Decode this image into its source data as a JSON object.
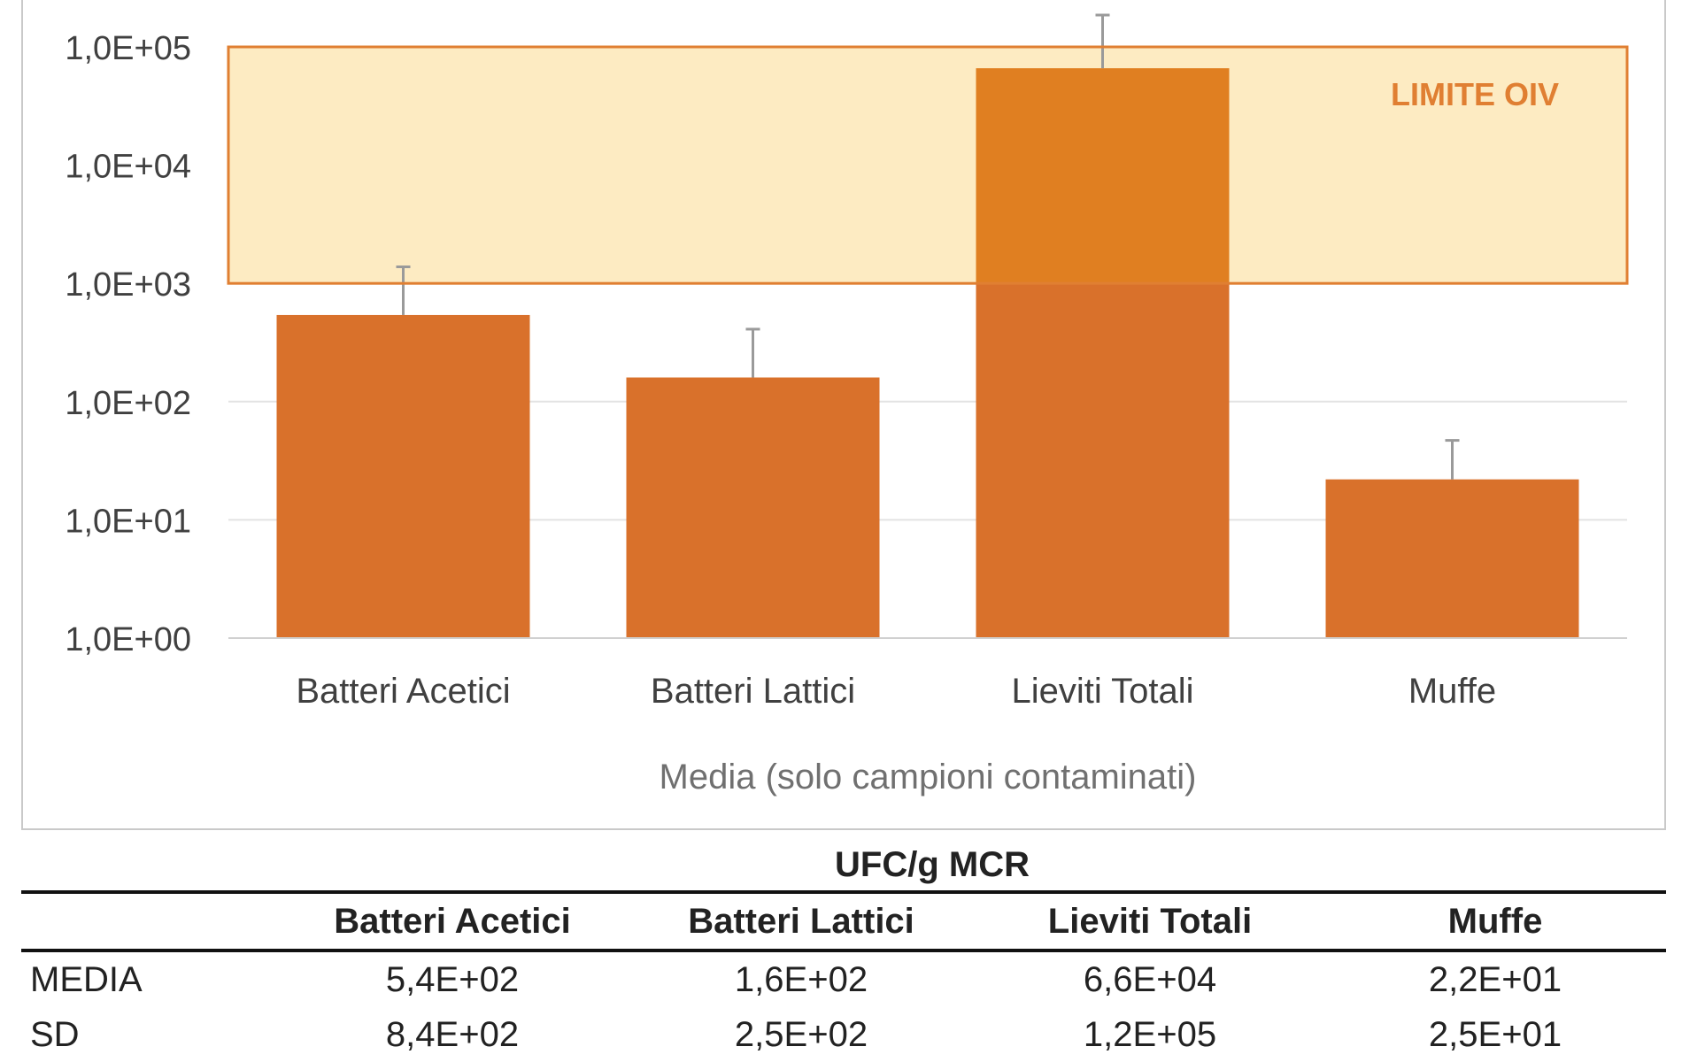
{
  "chart_data": {
    "type": "bar",
    "scale": "log",
    "categories": [
      "Batteri Acetici",
      "Batteri Lattici",
      "Lieviti Totali",
      "Muffe"
    ],
    "values": [
      540,
      160,
      66000,
      22
    ],
    "error_bars_upper": [
      1380,
      410,
      186000,
      47
    ],
    "y_tick_labels": [
      "1,0E+00",
      "1,0E+01",
      "1,0E+02",
      "1,0E+03",
      "1,0E+04",
      "1,0E+05"
    ],
    "y_tick_values": [
      1,
      10,
      100,
      1000,
      10000,
      100000
    ],
    "ylim": [
      1,
      100000
    ],
    "xlabel": "Media (solo campioni contaminati)",
    "grid": true,
    "band": {
      "label": "LIMITE OIV",
      "from": 1000,
      "to": 100000
    },
    "colors": {
      "bar": "#d9712b",
      "bar_in_band": "#e07f21",
      "band_fill": "#fdebc2",
      "band_border": "#e07f32",
      "band_label": "#e07f32",
      "grid": "#e3e3e3",
      "axis_text": "#404040"
    }
  },
  "table": {
    "title": "UFC/g MCR",
    "headers": [
      "",
      "Batteri Acetici",
      "Batteri Lattici",
      "Lieviti Totali",
      "Muffe"
    ],
    "rows": [
      [
        "MEDIA",
        "5,4E+02",
        "1,6E+02",
        "6,6E+04",
        "2,2E+01"
      ],
      [
        "SD",
        "8,4E+02",
        "2,5E+02",
        "1,2E+05",
        "2,5E+01"
      ]
    ]
  }
}
